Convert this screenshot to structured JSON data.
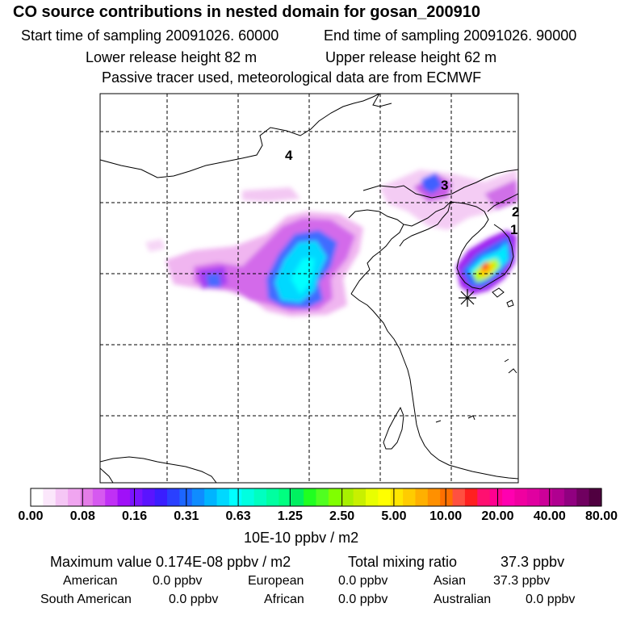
{
  "header": {
    "title": "CO  source contributions in nested domain for gosan_200910",
    "start_time": "Start time of sampling 20091026. 60000",
    "end_time": "End time of sampling 20091026. 90000",
    "lower_height": "Lower release height   82 m",
    "upper_height": "Upper release height   62 m",
    "info": "Passive tracer used, meteorological data are from ECMWF"
  },
  "map": {
    "markers": [
      "1",
      "2",
      "3",
      "4"
    ],
    "receptor_symbol": "asterisk"
  },
  "colorbar": {
    "ticks": [
      "0.00",
      "0.08",
      "0.16",
      "0.31",
      "0.63",
      "1.25",
      "2.50",
      "5.00",
      "10.00",
      "20.00",
      "40.00",
      "80.00"
    ],
    "colors": [
      "#ffffff",
      "#fbe7fb",
      "#f5c6f5",
      "#f0a5f0",
      "#e47ce8",
      "#d659f0",
      "#c030f5",
      "#a010f8",
      "#7a14ff",
      "#5a14ff",
      "#3a1eff",
      "#2a40ff",
      "#1c66ff",
      "#0f8cff",
      "#00b4ff",
      "#00d8ff",
      "#00ffff",
      "#00ffe0",
      "#00ffc0",
      "#00ffa0",
      "#00ff80",
      "#00f060",
      "#20ff20",
      "#50ff20",
      "#80ff00",
      "#a8f000",
      "#c8f000",
      "#e8ff00",
      "#ffff00",
      "#ffe600",
      "#ffcc00",
      "#ffb000",
      "#ff9000",
      "#ff7000",
      "#ff5040",
      "#ff2020",
      "#ff1070",
      "#ff0090",
      "#ff00b0",
      "#f000a0",
      "#e000a0",
      "#cc0099",
      "#b00090",
      "#900080",
      "#700060",
      "#500040"
    ],
    "unit": "10E-10 ppbv / m2"
  },
  "stats": {
    "max_label": "Maximum value  0.174E-08 ppbv / m2",
    "total_label": "Total mixing ratio",
    "total_value": "37.3 ppbv",
    "american_label": "American",
    "american_value": "0.0 ppbv",
    "european_label": "European",
    "european_value": "0.0 ppbv",
    "asian_label": "Asian",
    "asian_value": "37.3 ppbv",
    "south_american_label": "South American",
    "south_american_value": "0.0 ppbv",
    "african_label": "African",
    "african_value": "0.0 ppbv",
    "australian_label": "Australian",
    "australian_value": "0.0 ppbv"
  }
}
